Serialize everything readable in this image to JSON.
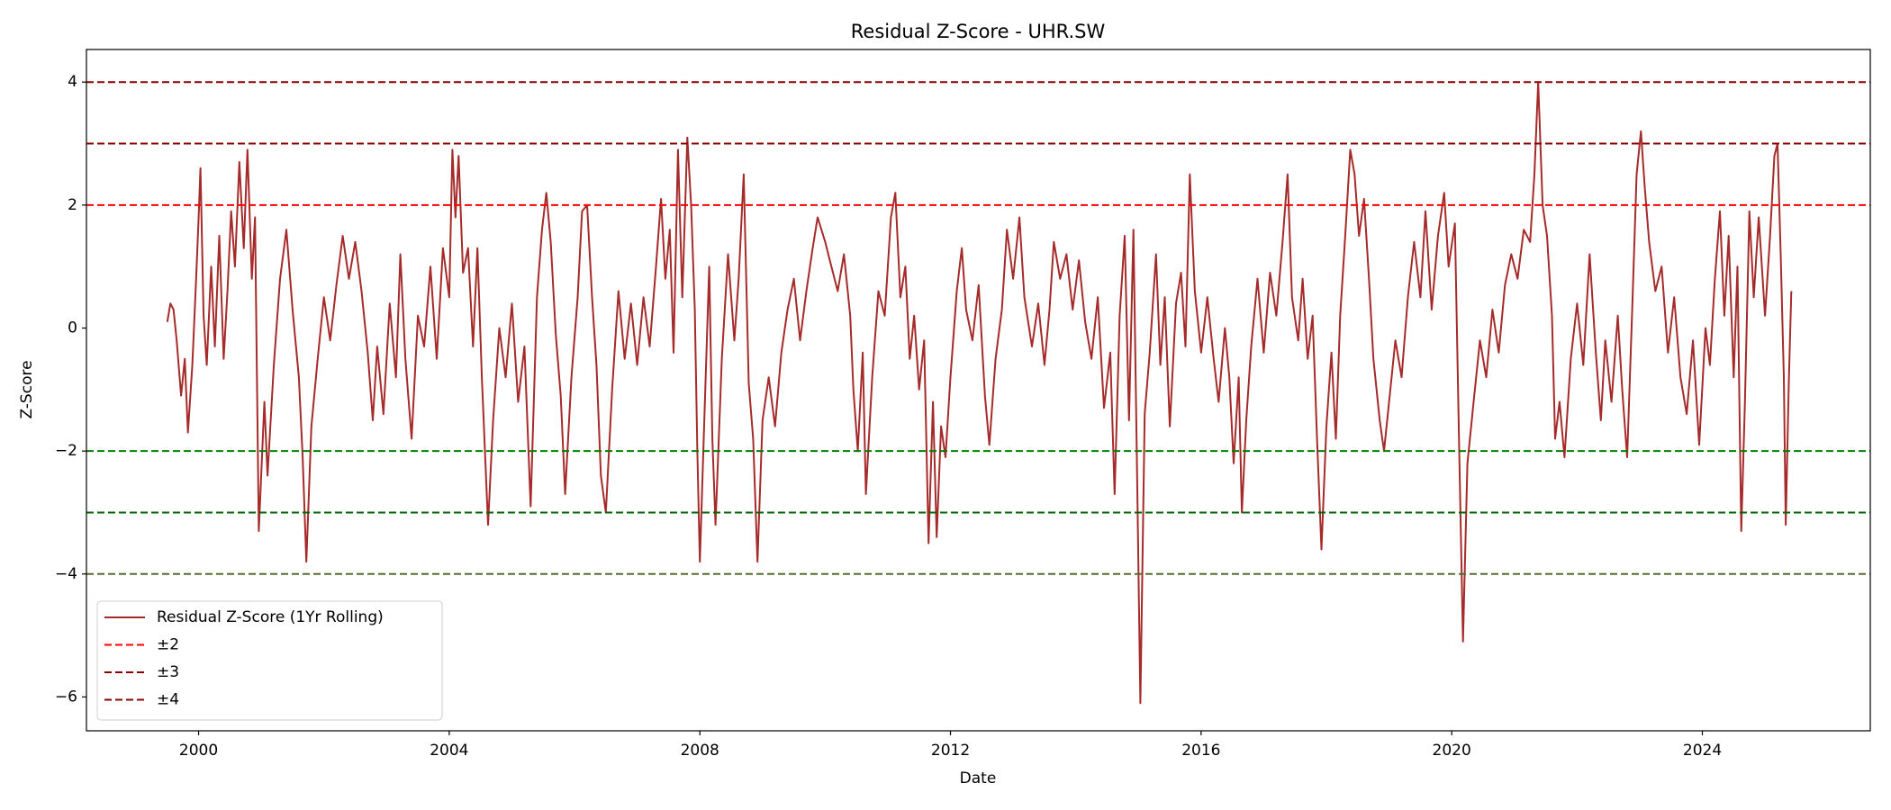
{
  "chart_data": {
    "type": "line",
    "title": "Residual Z-Score - UHR.SW",
    "x_label": "Date",
    "y_label": "Z-Score",
    "xlim": [
      1998.21,
      2026.68
    ],
    "xticks": [
      2000,
      2004,
      2008,
      2012,
      2016,
      2020,
      2024
    ],
    "ylim": [
      -6.55,
      4.53
    ],
    "yticks": [
      {
        "value": -6,
        "label": "−6"
      },
      {
        "value": -4,
        "label": "−4"
      },
      {
        "value": -2,
        "label": "−2"
      },
      0,
      2,
      4
    ],
    "legend": "lower left",
    "series": [
      {
        "name": "Residual Z-Score (1Yr Rolling)",
        "color": "#a52a2a",
        "x": [
          1999.5,
          1999.55,
          1999.6,
          1999.65,
          1999.72,
          1999.78,
          1999.83,
          1999.9,
          1999.96,
          2000.0,
          2000.03,
          2000.08,
          2000.13,
          2000.2,
          2000.26,
          2000.33,
          2000.4,
          2000.46,
          2000.52,
          2000.58,
          2000.65,
          2000.72,
          2000.78,
          2000.85,
          2000.9,
          2000.96,
          2001.05,
          2001.1,
          2001.2,
          2001.3,
          2001.4,
          2001.5,
          2001.6,
          2001.66,
          2001.72,
          2001.8,
          2001.9,
          2002.0,
          2002.1,
          2002.2,
          2002.3,
          2002.4,
          2002.5,
          2002.6,
          2002.7,
          2002.78,
          2002.85,
          2002.95,
          2003.05,
          2003.15,
          2003.22,
          2003.3,
          2003.4,
          2003.5,
          2003.6,
          2003.7,
          2003.8,
          2003.9,
          2004.0,
          2004.05,
          2004.1,
          2004.15,
          2004.22,
          2004.3,
          2004.38,
          2004.45,
          2004.52,
          2004.62,
          2004.7,
          2004.8,
          2004.9,
          2005.0,
          2005.1,
          2005.2,
          2005.3,
          2005.4,
          2005.48,
          2005.55,
          2005.62,
          2005.7,
          2005.78,
          2005.85,
          2005.95,
          2006.05,
          2006.12,
          2006.2,
          2006.28,
          2006.35,
          2006.42,
          2006.5,
          2006.6,
          2006.7,
          2006.8,
          2006.9,
          2007.0,
          2007.1,
          2007.2,
          2007.3,
          2007.38,
          2007.45,
          2007.52,
          2007.58,
          2007.65,
          2007.72,
          2007.8,
          2007.86,
          2007.92,
          2007.96,
          2008.0,
          2008.08,
          2008.15,
          2008.2,
          2008.25,
          2008.35,
          2008.45,
          2008.55,
          2008.62,
          2008.7,
          2008.78,
          2008.85,
          2008.92,
          2009.0,
          2009.1,
          2009.2,
          2009.3,
          2009.4,
          2009.5,
          2009.6,
          2009.7,
          2009.8,
          2009.88,
          2010.0,
          2010.1,
          2010.2,
          2010.3,
          2010.4,
          2010.45,
          2010.52,
          2010.6,
          2010.65,
          2010.75,
          2010.85,
          2010.95,
          2011.05,
          2011.12,
          2011.2,
          2011.28,
          2011.35,
          2011.42,
          2011.5,
          2011.58,
          2011.65,
          2011.72,
          2011.78,
          2011.85,
          2011.92,
          2012.0,
          2012.1,
          2012.18,
          2012.25,
          2012.35,
          2012.45,
          2012.55,
          2012.62,
          2012.72,
          2012.82,
          2012.9,
          2013.0,
          2013.1,
          2013.18,
          2013.3,
          2013.4,
          2013.5,
          2013.58,
          2013.65,
          2013.75,
          2013.85,
          2013.95,
          2014.05,
          2014.15,
          2014.25,
          2014.35,
          2014.45,
          2014.55,
          2014.62,
          2014.7,
          2014.78,
          2014.85,
          2014.92,
          2014.98,
          2015.03,
          2015.1,
          2015.18,
          2015.28,
          2015.35,
          2015.42,
          2015.5,
          2015.6,
          2015.68,
          2015.75,
          2015.82,
          2015.9,
          2016.0,
          2016.1,
          2016.2,
          2016.28,
          2016.38,
          2016.45,
          2016.52,
          2016.6,
          2016.65,
          2016.72,
          2016.8,
          2016.9,
          2017.0,
          2017.1,
          2017.2,
          2017.3,
          2017.38,
          2017.45,
          2017.55,
          2017.62,
          2017.7,
          2017.78,
          2017.85,
          2017.92,
          2018.0,
          2018.08,
          2018.15,
          2018.22,
          2018.3,
          2018.38,
          2018.45,
          2018.52,
          2018.6,
          2018.68,
          2018.75,
          2018.85,
          2018.92,
          2019.0,
          2019.1,
          2019.2,
          2019.3,
          2019.4,
          2019.5,
          2019.58,
          2019.68,
          2019.78,
          2019.88,
          2019.95,
          2020.05,
          2020.12,
          2020.18,
          2020.25,
          2020.35,
          2020.45,
          2020.55,
          2020.65,
          2020.75,
          2020.85,
          2020.95,
          2021.05,
          2021.15,
          2021.25,
          2021.32,
          2021.38,
          2021.45,
          2021.52,
          2021.6,
          2021.65,
          2021.72,
          2021.8,
          2021.9,
          2022.0,
          2022.1,
          2022.2,
          2022.3,
          2022.38,
          2022.45,
          2022.55,
          2022.65,
          2022.72,
          2022.8,
          2022.88,
          2022.95,
          2023.02,
          2023.08,
          2023.15,
          2023.25,
          2023.35,
          2023.45,
          2023.55,
          2023.65,
          2023.75,
          2023.85,
          2023.95,
          2024.05,
          2024.12,
          2024.2,
          2024.28,
          2024.35,
          2024.42,
          2024.5,
          2024.56,
          2024.62,
          2024.68,
          2024.75,
          2024.82,
          2024.9,
          2025.0,
          2025.08,
          2025.15,
          2025.2,
          2025.25,
          2025.3,
          2025.33,
          2025.38,
          2025.42
        ],
        "values": [
          0.1,
          0.4,
          0.3,
          -0.2,
          -1.1,
          -0.5,
          -1.7,
          -0.6,
          0.8,
          1.8,
          2.6,
          0.2,
          -0.6,
          1.0,
          -0.3,
          1.5,
          -0.5,
          0.6,
          1.9,
          1.0,
          2.7,
          1.3,
          2.9,
          0.8,
          1.8,
          -3.3,
          -1.2,
          -2.4,
          -0.6,
          0.8,
          1.6,
          0.3,
          -0.8,
          -2.1,
          -3.8,
          -1.6,
          -0.5,
          0.5,
          -0.2,
          0.7,
          1.5,
          0.8,
          1.4,
          0.6,
          -0.4,
          -1.5,
          -0.3,
          -1.4,
          0.4,
          -0.8,
          1.2,
          -0.5,
          -1.8,
          0.2,
          -0.3,
          1.0,
          -0.5,
          1.3,
          0.5,
          2.9,
          1.8,
          2.8,
          0.9,
          1.3,
          -0.3,
          1.3,
          -0.8,
          -3.2,
          -1.5,
          0.0,
          -0.8,
          0.4,
          -1.2,
          -0.3,
          -2.9,
          0.5,
          1.6,
          2.2,
          1.4,
          -0.1,
          -1.1,
          -2.7,
          -0.8,
          0.5,
          1.9,
          2.0,
          0.5,
          -0.6,
          -2.4,
          -3.0,
          -1.0,
          0.6,
          -0.5,
          0.4,
          -0.6,
          0.5,
          -0.3,
          1.0,
          2.1,
          0.8,
          1.6,
          -0.4,
          2.9,
          0.5,
          3.1,
          2.0,
          0.3,
          -2.0,
          -3.8,
          -1.2,
          1.0,
          -1.8,
          -3.2,
          -0.5,
          1.2,
          -0.2,
          0.8,
          2.5,
          -0.9,
          -1.8,
          -3.8,
          -1.5,
          -0.8,
          -1.6,
          -0.4,
          0.3,
          0.8,
          -0.2,
          0.6,
          1.3,
          1.8,
          1.4,
          1.0,
          0.6,
          1.2,
          0.2,
          -1.0,
          -2.0,
          -0.4,
          -2.7,
          -0.8,
          0.6,
          0.2,
          1.8,
          2.2,
          0.5,
          1.0,
          -0.5,
          0.2,
          -1.0,
          -0.2,
          -3.5,
          -1.2,
          -3.4,
          -1.6,
          -2.1,
          -0.8,
          0.6,
          1.3,
          0.3,
          -0.2,
          0.7,
          -1.1,
          -1.9,
          -0.5,
          0.3,
          1.6,
          0.8,
          1.8,
          0.5,
          -0.3,
          0.4,
          -0.6,
          0.3,
          1.4,
          0.8,
          1.2,
          0.3,
          1.1,
          0.1,
          -0.5,
          0.5,
          -1.3,
          -0.4,
          -2.7,
          0.2,
          1.5,
          -1.5,
          1.6,
          -2.5,
          -6.1,
          -1.4,
          -0.4,
          1.2,
          -0.6,
          0.5,
          -1.6,
          0.4,
          0.9,
          -0.3,
          2.5,
          0.6,
          -0.4,
          0.5,
          -0.5,
          -1.2,
          0.0,
          -0.8,
          -2.2,
          -0.8,
          -3.0,
          -1.5,
          -0.3,
          0.8,
          -0.4,
          0.9,
          0.2,
          1.4,
          2.5,
          0.5,
          -0.2,
          0.8,
          -0.5,
          0.2,
          -1.8,
          -3.6,
          -1.6,
          -0.4,
          -1.8,
          0.2,
          1.5,
          2.9,
          2.5,
          1.5,
          2.1,
          0.8,
          -0.5,
          -1.5,
          -2.0,
          -1.2,
          -0.2,
          -0.8,
          0.5,
          1.4,
          0.5,
          1.9,
          0.3,
          1.5,
          2.2,
          1.0,
          1.7,
          -2.0,
          -5.1,
          -2.2,
          -1.2,
          -0.2,
          -0.8,
          0.3,
          -0.4,
          0.7,
          1.2,
          0.8,
          1.6,
          1.4,
          2.5,
          4.0,
          2.0,
          1.5,
          0.2,
          -1.8,
          -1.2,
          -2.1,
          -0.5,
          0.4,
          -0.6,
          1.2,
          -0.4,
          -1.5,
          -0.2,
          -1.2,
          0.2,
          -1.0,
          -2.1,
          0.3,
          2.5,
          3.2,
          2.3,
          1.4,
          0.6,
          1.0,
          -0.4,
          0.5,
          -0.8,
          -1.4,
          -0.2,
          -1.9,
          0.0,
          -0.6,
          0.8,
          1.9,
          0.2,
          1.5,
          -0.8,
          1.0,
          -3.3,
          -1.2,
          1.9,
          0.5,
          1.8,
          0.2,
          1.5,
          2.8,
          3.0,
          1.2,
          -0.8,
          -3.2,
          -0.9,
          0.6
        ]
      }
    ],
    "reference_lines": [
      {
        "name": "±2",
        "upper": 2,
        "lower": -2,
        "color": "#ff0000",
        "lower_color": "#008000"
      },
      {
        "name": "±3",
        "upper": 3,
        "lower": -3,
        "color": "#8b0000",
        "lower_color": "#006400"
      },
      {
        "name": "±4",
        "upper": 4,
        "lower": -4,
        "color": "#8b0000",
        "lower_color": "#556b2f"
      }
    ]
  }
}
